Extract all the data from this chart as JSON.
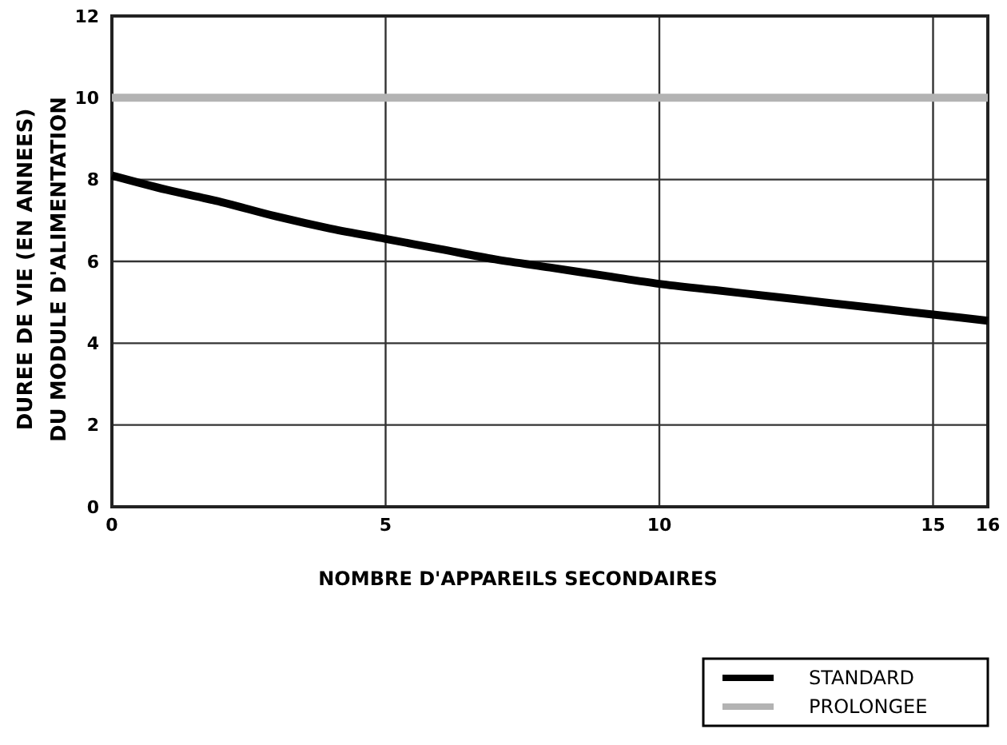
{
  "chart_data": {
    "type": "line",
    "xlabel": "NOMBRE D'APPAREILS SECONDAIRES",
    "ylabel": "DUREE DE VIE (EN ANNEES)\nDU MODULE D'ALIMENTATION",
    "xlim": [
      0,
      16
    ],
    "xticks": [
      0,
      5,
      10,
      15,
      16
    ],
    "ylim": [
      0,
      12
    ],
    "yticks": [
      0,
      2,
      4,
      6,
      8,
      10,
      12
    ],
    "grid": true,
    "legend": "bottom right",
    "line_style": "solid",
    "marker": "none",
    "series": [
      {
        "name": "STANDARD",
        "color": "#000000",
        "x": [
          0,
          1,
          2,
          3,
          4,
          5,
          6,
          7,
          8,
          9,
          10,
          11,
          12,
          13,
          14,
          15,
          16
        ],
        "values": [
          8.1,
          7.75,
          7.45,
          7.1,
          6.8,
          6.55,
          6.3,
          6.05,
          5.85,
          5.65,
          5.45,
          5.3,
          5.15,
          5.0,
          4.85,
          4.7,
          4.55
        ]
      },
      {
        "name": "PROLONGEE",
        "color": "#b3b3b3",
        "x": [
          0,
          16
        ],
        "values": [
          10,
          10
        ]
      }
    ]
  }
}
